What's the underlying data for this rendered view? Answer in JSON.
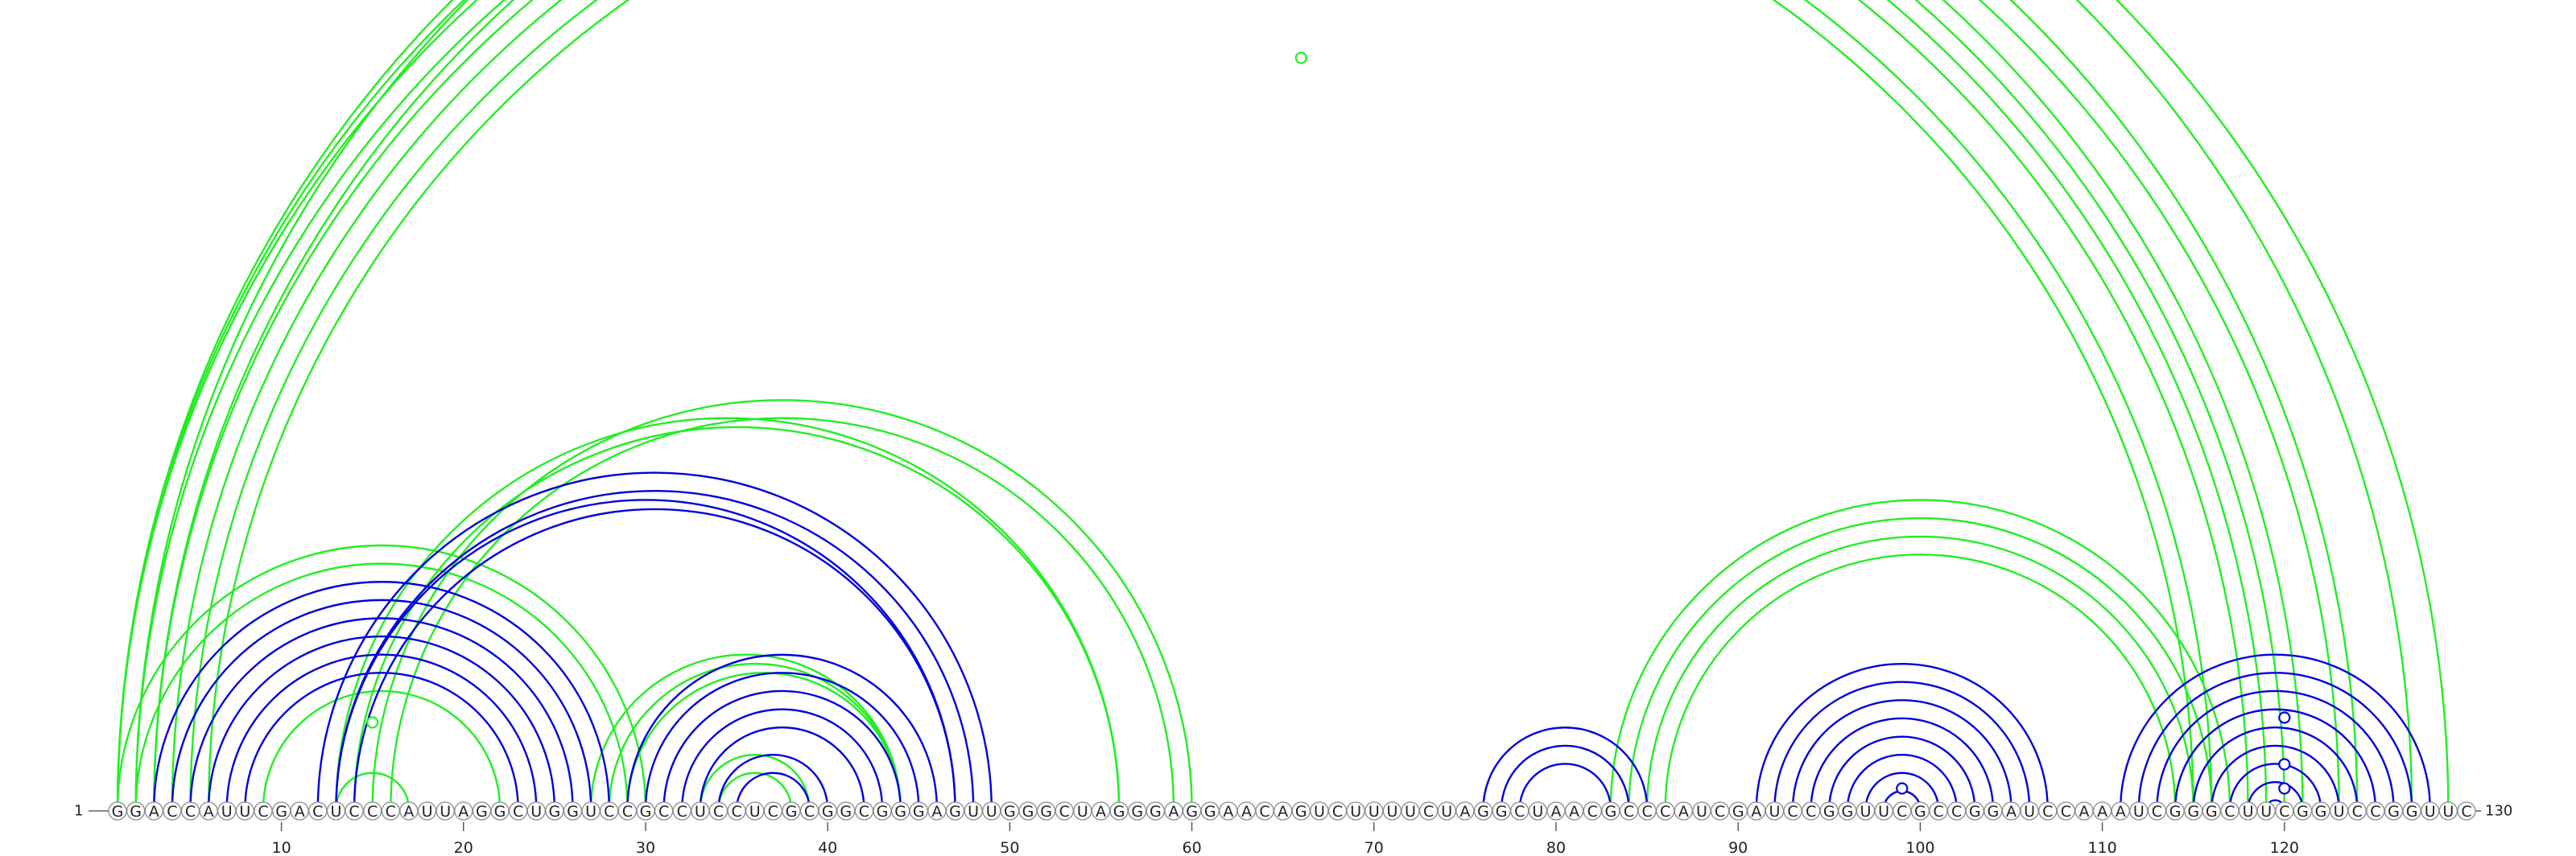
{
  "sequence": "GGACCAUUCGACUCCCAUUAGGCUGGUCCGCCUCCUCGCGGCGGGAGUUGGGCUAGGGAGGAACAGUCUUUUCUAGGCUAACGCCCAUCGAUCCGGUUCGCCGGAUCCAAAUCGGGCUUCGGUCCGGUUC",
  "start_label": "1",
  "end_label": "130",
  "ticks": [
    10,
    20,
    30,
    40,
    50,
    60,
    70,
    80,
    90,
    100,
    110,
    120
  ],
  "colors": {
    "blue": "#0000dd",
    "green": "#22ee22"
  },
  "chart_data": {
    "type": "arc",
    "blue_arcs": [
      [
        3,
        28
      ],
      [
        4,
        27
      ],
      [
        5,
        26
      ],
      [
        6,
        25
      ],
      [
        7,
        24
      ],
      [
        8,
        23
      ],
      [
        12,
        49
      ],
      [
        13,
        48
      ],
      [
        13,
        47
      ],
      [
        14,
        47
      ],
      [
        29,
        46
      ],
      [
        30,
        45
      ],
      [
        31,
        44
      ],
      [
        32,
        43
      ],
      [
        33,
        42
      ],
      [
        34,
        40
      ],
      [
        35,
        39
      ],
      [
        76,
        85
      ],
      [
        77,
        84
      ],
      [
        78,
        83
      ],
      [
        91,
        107
      ],
      [
        92,
        106
      ],
      [
        93,
        105
      ],
      [
        94,
        104
      ],
      [
        95,
        103
      ],
      [
        96,
        102
      ],
      [
        97,
        101
      ],
      [
        98,
        100
      ],
      [
        111,
        128
      ],
      [
        112,
        127
      ],
      [
        113,
        126
      ],
      [
        114,
        125
      ],
      [
        115,
        124
      ],
      [
        116,
        123
      ],
      [
        117,
        122
      ],
      [
        118,
        121
      ],
      [
        119,
        120
      ]
    ],
    "green_arcs": [
      [
        1,
        121
      ],
      [
        2,
        120
      ],
      [
        3,
        119
      ],
      [
        4,
        118
      ],
      [
        5,
        116
      ],
      [
        6,
        115
      ],
      [
        1,
        124
      ],
      [
        3,
        123
      ],
      [
        1,
        127
      ],
      [
        2,
        129
      ],
      [
        1,
        30
      ],
      [
        2,
        29
      ],
      [
        9,
        22
      ],
      [
        13,
        17
      ],
      [
        13,
        56
      ],
      [
        14,
        56
      ],
      [
        15,
        60
      ],
      [
        16,
        59
      ],
      [
        28,
        44
      ],
      [
        29,
        44
      ],
      [
        33,
        39
      ],
      [
        34,
        38
      ],
      [
        83,
        117
      ],
      [
        84,
        116
      ],
      [
        85,
        115
      ],
      [
        86,
        114
      ],
      [
        27,
        44
      ]
    ],
    "markers": [
      {
        "color": "green",
        "pos": 66
      },
      {
        "color": "green",
        "pos": 15
      },
      {
        "color": "blue",
        "pos": 120
      },
      {
        "color": "blue",
        "pos": 120
      },
      {
        "color": "blue",
        "pos": 120
      },
      {
        "color": "blue",
        "pos": 99
      }
    ]
  }
}
